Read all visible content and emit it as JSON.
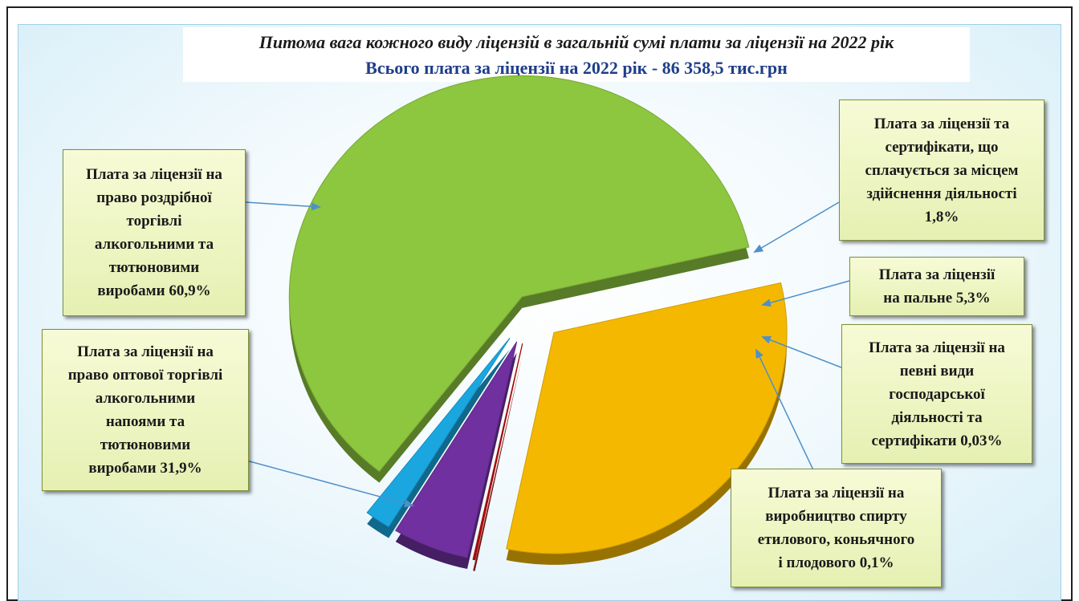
{
  "chart_data": {
    "type": "pie",
    "title": "Питома вага кожного виду ліцензій в загальній сумі плати за ліцензії на 2022 рік",
    "subtitle": "Всього плата за ліцензії на 2022 рік  - 86 358,5 тис.грн",
    "slices": [
      {
        "label": "Плата за ліцензії на\nправо роздрібної\nторгівлі\nалкогольними та\nтютюновими\nвиробами 60,9%",
        "value": 60.9,
        "color": "#8dc63f"
      },
      {
        "label": "Плата за ліцензії та\nсертифікати, що\nсплачується за місцем\nздійснення діяльності\n1,8%",
        "value": 1.8,
        "color": "#1aa7e0"
      },
      {
        "label": "Плата за ліцензії\nна пальне 5,3%",
        "value": 5.3,
        "color": "#7030a0"
      },
      {
        "label": "Плата за ліцензії  на\nпевні види\nгосподарської\nдіяльності та\nсертифікати 0,03%",
        "value": 0.03,
        "color": "#c0392b"
      },
      {
        "label": "Плата за ліцензії на\nвиробництво спирту\nетилового, коньячного\nі плодового 0,1%",
        "value": 0.1,
        "color": "#c00000"
      },
      {
        "label": "Плата за ліцензії на\nправо оптової торгівлі\nалкогольними\nнапоями та\nтютюновими\nвиробами 31,9%",
        "value": 31.9,
        "color": "#f5b800"
      }
    ]
  }
}
